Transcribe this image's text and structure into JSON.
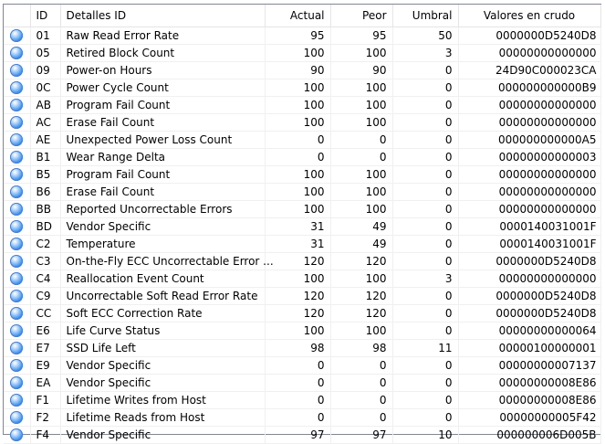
{
  "columns": {
    "id": "ID",
    "name": "Detalles ID",
    "actual": "Actual",
    "peor": "Peor",
    "umbral": "Umbral",
    "raw": "Valores en crudo"
  },
  "status_icon": "blue-status-orb-icon",
  "status_color": "#2f79e0",
  "rows": [
    {
      "id": "01",
      "name": "Raw Read Error Rate",
      "actual": "95",
      "peor": "95",
      "umbral": "50",
      "raw": "0000000D5240D8"
    },
    {
      "id": "05",
      "name": "Retired Block Count",
      "actual": "100",
      "peor": "100",
      "umbral": "3",
      "raw": "00000000000000"
    },
    {
      "id": "09",
      "name": "Power-on Hours",
      "actual": "90",
      "peor": "90",
      "umbral": "0",
      "raw": "24D90C000023CA"
    },
    {
      "id": "0C",
      "name": "Power Cycle Count",
      "actual": "100",
      "peor": "100",
      "umbral": "0",
      "raw": "000000000000B9"
    },
    {
      "id": "AB",
      "name": "Program Fail Count",
      "actual": "100",
      "peor": "100",
      "umbral": "0",
      "raw": "00000000000000"
    },
    {
      "id": "AC",
      "name": "Erase Fail Count",
      "actual": "100",
      "peor": "100",
      "umbral": "0",
      "raw": "00000000000000"
    },
    {
      "id": "AE",
      "name": "Unexpected Power Loss Count",
      "actual": "0",
      "peor": "0",
      "umbral": "0",
      "raw": "000000000000A5"
    },
    {
      "id": "B1",
      "name": "Wear Range Delta",
      "actual": "0",
      "peor": "0",
      "umbral": "0",
      "raw": "00000000000003"
    },
    {
      "id": "B5",
      "name": "Program Fail Count",
      "actual": "100",
      "peor": "100",
      "umbral": "0",
      "raw": "00000000000000"
    },
    {
      "id": "B6",
      "name": "Erase Fail Count",
      "actual": "100",
      "peor": "100",
      "umbral": "0",
      "raw": "00000000000000"
    },
    {
      "id": "BB",
      "name": "Reported Uncorrectable Errors",
      "actual": "100",
      "peor": "100",
      "umbral": "0",
      "raw": "00000000000000"
    },
    {
      "id": "BD",
      "name": "Vendor Specific",
      "actual": "31",
      "peor": "49",
      "umbral": "0",
      "raw": "0000140031001F"
    },
    {
      "id": "C2",
      "name": "Temperature",
      "actual": "31",
      "peor": "49",
      "umbral": "0",
      "raw": "0000140031001F"
    },
    {
      "id": "C3",
      "name": "On-the-Fly ECC Uncorrectable Error ...",
      "actual": "120",
      "peor": "120",
      "umbral": "0",
      "raw": "0000000D5240D8"
    },
    {
      "id": "C4",
      "name": "Reallocation Event Count",
      "actual": "100",
      "peor": "100",
      "umbral": "3",
      "raw": "00000000000000"
    },
    {
      "id": "C9",
      "name": "Uncorrectable Soft Read Error Rate",
      "actual": "120",
      "peor": "120",
      "umbral": "0",
      "raw": "0000000D5240D8"
    },
    {
      "id": "CC",
      "name": "Soft ECC Correction Rate",
      "actual": "120",
      "peor": "120",
      "umbral": "0",
      "raw": "0000000D5240D8"
    },
    {
      "id": "E6",
      "name": "Life Curve Status",
      "actual": "100",
      "peor": "100",
      "umbral": "0",
      "raw": "00000000000064"
    },
    {
      "id": "E7",
      "name": "SSD Life Left",
      "actual": "98",
      "peor": "98",
      "umbral": "11",
      "raw": "00000100000001"
    },
    {
      "id": "E9",
      "name": "Vendor Specific",
      "actual": "0",
      "peor": "0",
      "umbral": "0",
      "raw": "00000000007137"
    },
    {
      "id": "EA",
      "name": "Vendor Specific",
      "actual": "0",
      "peor": "0",
      "umbral": "0",
      "raw": "00000000008E86"
    },
    {
      "id": "F1",
      "name": "Lifetime Writes from Host",
      "actual": "0",
      "peor": "0",
      "umbral": "0",
      "raw": "00000000008E86"
    },
    {
      "id": "F2",
      "name": "Lifetime Reads from Host",
      "actual": "0",
      "peor": "0",
      "umbral": "0",
      "raw": "00000000005F42"
    },
    {
      "id": "F4",
      "name": "Vendor Specific",
      "actual": "97",
      "peor": "97",
      "umbral": "10",
      "raw": "000000006D005B"
    }
  ]
}
